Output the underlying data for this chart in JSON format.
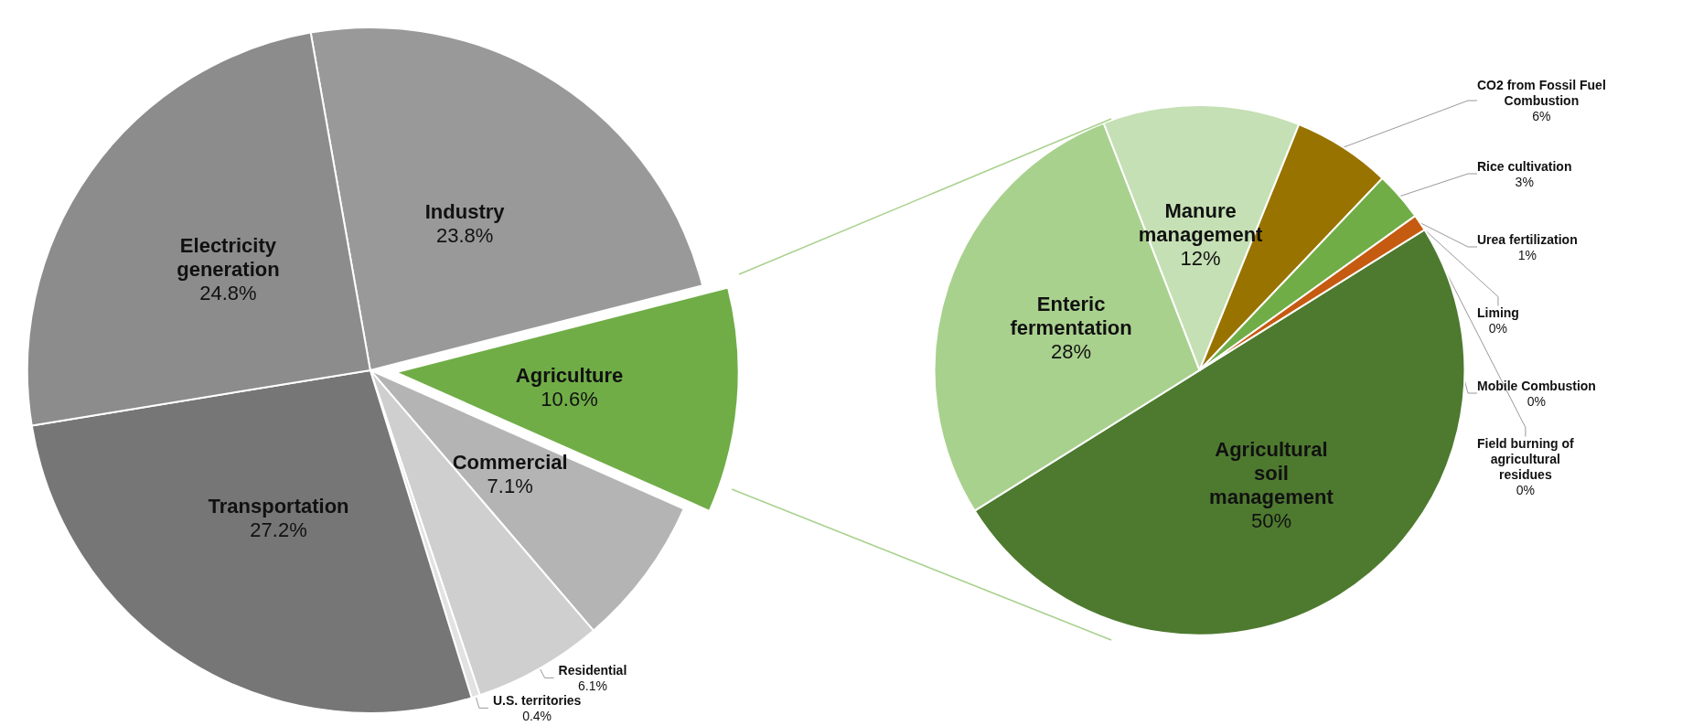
{
  "chart_data": [
    {
      "type": "pie",
      "categories": [
        "Industry",
        "Agriculture",
        "Commercial",
        "Residential",
        "U.S. territories",
        "Transportation",
        "Electricity generation"
      ],
      "values": [
        23.8,
        10.6,
        7.1,
        6.1,
        0.4,
        27.2,
        24.8
      ],
      "colors": [
        "#999999",
        "#70ad47",
        "#b4b4b4",
        "#cfcfcf",
        "#e2e2e2",
        "#767676",
        "#8c8c8c"
      ],
      "value_labels": [
        "23.8%",
        "10.6%",
        "7.1%",
        "6.1%",
        "0.4%",
        "27.2%",
        "24.8%"
      ],
      "legend": false
    },
    {
      "type": "pie",
      "categories": [
        "Agricultural soil management",
        "Enteric fermentation",
        "Manure management",
        "CO2 from Fossil Fuel Combustion",
        "Rice cultivation",
        "Urea fertilization",
        "Liming",
        "Mobile Combustion",
        "Field burning of agricultural residues"
      ],
      "values": [
        50,
        28,
        12,
        6,
        3,
        1,
        0,
        0,
        0
      ],
      "colors": [
        "#4e7a2f",
        "#a9d18e",
        "#c5e0b4",
        "#997300",
        "#70ad47",
        "#c55a11",
        "#a9d18e",
        "#c5e0b4",
        "#e2efda"
      ],
      "value_labels": [
        "50%",
        "28%",
        "12%",
        "6%",
        "3%",
        "1%",
        "0%",
        "0%",
        "0%"
      ],
      "legend": false
    }
  ]
}
